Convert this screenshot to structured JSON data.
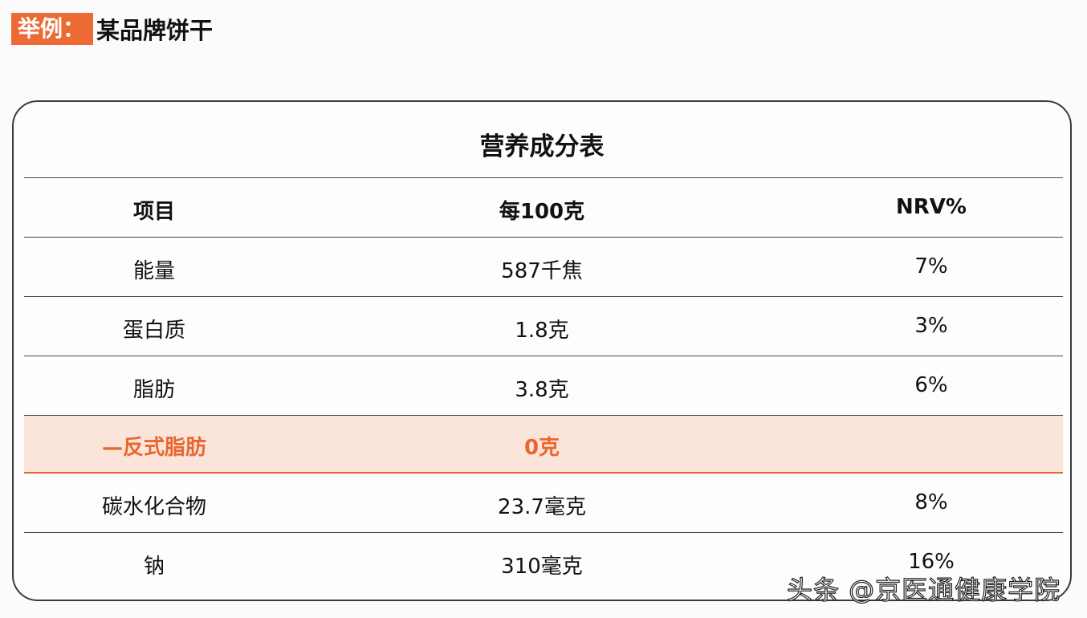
{
  "heading": {
    "tag": "举例：",
    "product": "某品牌饼干"
  },
  "table": {
    "title": "营养成分表",
    "headers": [
      "项目",
      "每100克",
      "NRV%"
    ],
    "rows": [
      {
        "item": "能量",
        "per100g": "587千焦",
        "nrv": "7%"
      },
      {
        "item": "蛋白质",
        "per100g": "1.8克",
        "nrv": "3%"
      },
      {
        "item": "脂肪",
        "per100g": "3.8克",
        "nrv": "6%"
      },
      {
        "item": "—反式脂肪",
        "per100g": "0克",
        "nrv": "",
        "highlighted": true
      },
      {
        "item": "碳水化合物",
        "per100g": "23.7毫克",
        "nrv": "8%"
      },
      {
        "item": "钠",
        "per100g": "310毫克",
        "nrv": "16%"
      }
    ]
  },
  "watermark": "头条 @京医通健康学院",
  "colors": {
    "accent": "#ee6a35",
    "highlight_bg": "#fbe5da"
  }
}
